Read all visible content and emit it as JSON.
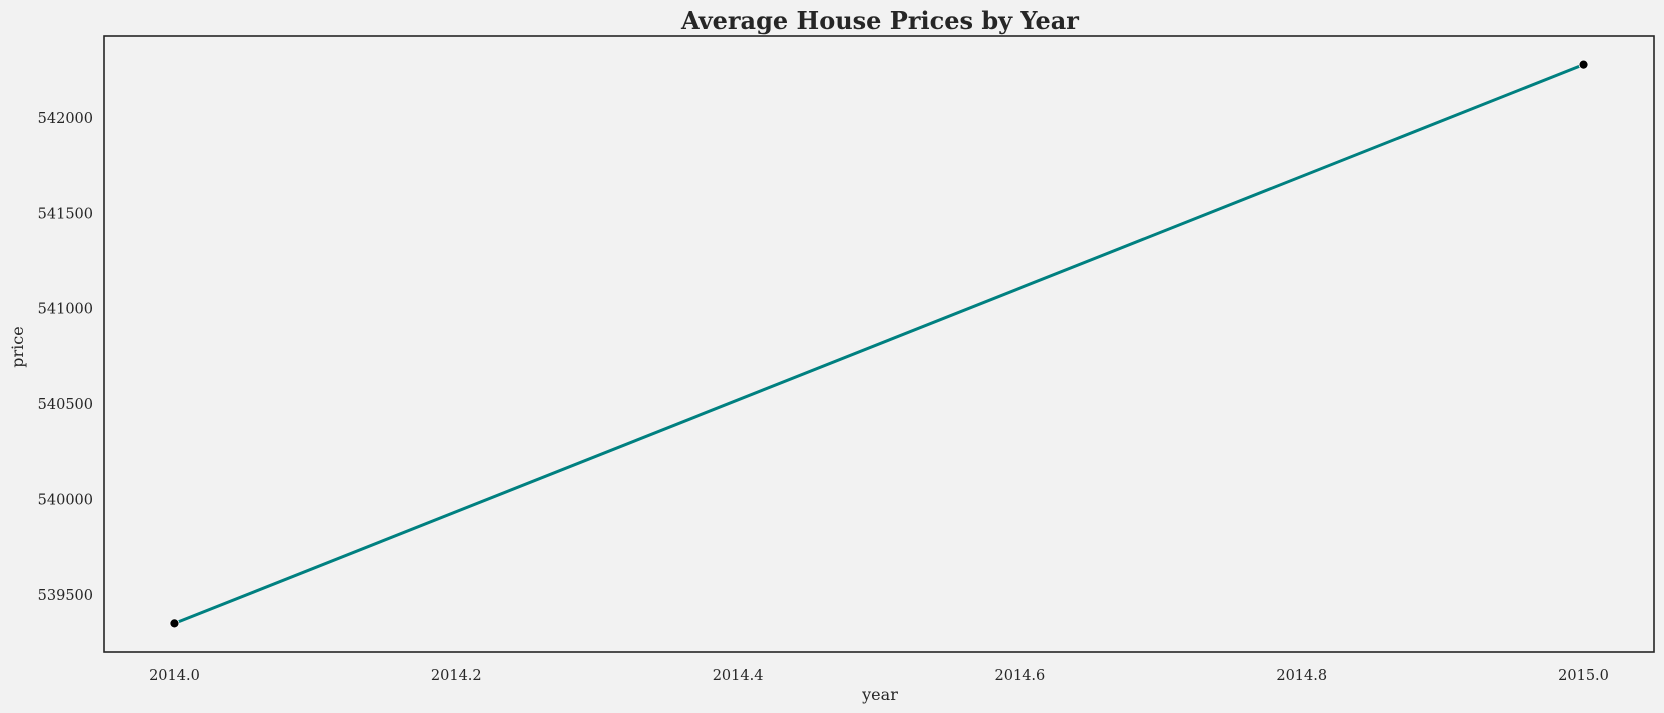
{
  "chart_data": {
    "type": "line",
    "title": "Average House Prices by Year",
    "xlabel": "year",
    "ylabel": "price",
    "x": [
      2014,
      2015
    ],
    "series": [
      {
        "name": "price",
        "values": [
          539350,
          542280
        ],
        "color": "#008080",
        "marker_color": "#000000"
      }
    ],
    "xlim": [
      2013.95,
      2015.05
    ],
    "ylim": [
      539200,
      542430
    ],
    "xticks": [
      2014.0,
      2014.2,
      2014.4,
      2014.6,
      2014.8,
      2015.0
    ],
    "xtick_labels": [
      "2014.0",
      "2014.2",
      "2014.4",
      "2014.6",
      "2014.8",
      "2015.0"
    ],
    "yticks": [
      539500,
      540000,
      540500,
      541000,
      541500,
      542000
    ],
    "ytick_labels": [
      "539500",
      "540000",
      "540500",
      "541000",
      "541500",
      "542000"
    ],
    "grid": false,
    "background": "#f2f2f2"
  }
}
